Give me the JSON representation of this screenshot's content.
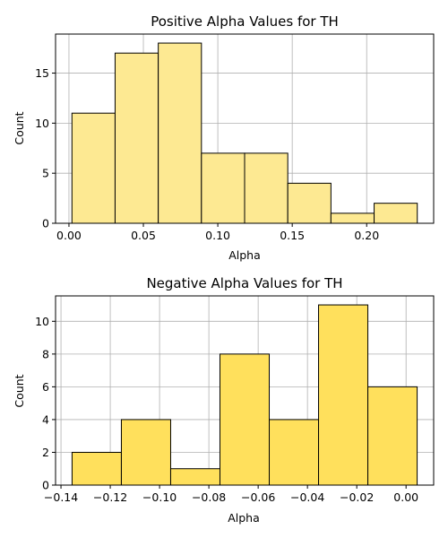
{
  "chart_data": [
    {
      "type": "bar",
      "subtype": "histogram",
      "title": "Positive Alpha Values for TH",
      "xlabel": "Alpha",
      "ylabel": "Count",
      "bin_edges": [
        0.002,
        0.031,
        0.06,
        0.089,
        0.118,
        0.147,
        0.176,
        0.205,
        0.234
      ],
      "values": [
        11,
        17,
        18,
        7,
        7,
        4,
        1,
        2
      ],
      "xlim": [
        -0.009,
        0.245
      ],
      "ylim": [
        0,
        18.9
      ],
      "xticks": [
        0.0,
        0.05,
        0.1,
        0.15,
        0.2
      ],
      "xtick_labels": [
        "0.00",
        "0.05",
        "0.10",
        "0.15",
        "0.20"
      ],
      "yticks": [
        0,
        5,
        10,
        15
      ],
      "ytick_labels": [
        "0",
        "5",
        "10",
        "15"
      ],
      "grid": true,
      "bar_color": "#FDE992",
      "edge_color": "#000000"
    },
    {
      "type": "bar",
      "subtype": "histogram",
      "title": "Negative Alpha Values for TH",
      "xlabel": "Alpha",
      "ylabel": "Count",
      "bin_edges": [
        -0.1355,
        -0.1155,
        -0.0955,
        -0.0755,
        -0.0555,
        -0.0355,
        -0.0155,
        0.0045
      ],
      "values": [
        2,
        4,
        1,
        8,
        4,
        11,
        6
      ],
      "xlim": [
        -0.1422,
        0.0112
      ],
      "ylim": [
        0,
        11.55
      ],
      "xticks": [
        -0.14,
        -0.12,
        -0.1,
        -0.08,
        -0.06,
        -0.04,
        -0.02,
        0.0
      ],
      "xtick_labels": [
        "−0.14",
        "−0.12",
        "−0.10",
        "−0.08",
        "−0.06",
        "−0.04",
        "−0.02",
        "0.00"
      ],
      "yticks": [
        0,
        2,
        4,
        6,
        8,
        10
      ],
      "ytick_labels": [
        "0",
        "2",
        "4",
        "6",
        "8",
        "10"
      ],
      "grid": true,
      "bar_color": "#FFE05C",
      "edge_color": "#000000"
    }
  ]
}
